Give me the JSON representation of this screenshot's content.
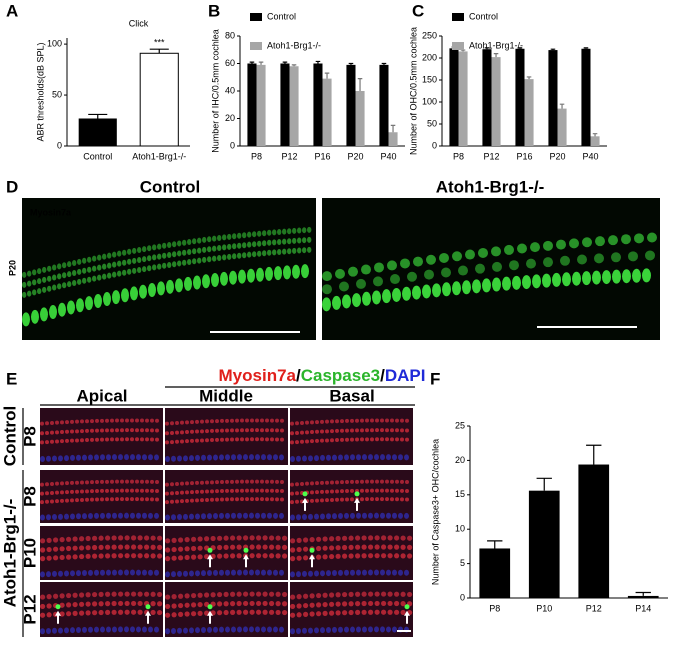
{
  "chart_data": [
    {
      "label": "A",
      "type": "bar",
      "title": "Click",
      "ylabel": "ABR thresholds(dB SPL)",
      "categories": [
        "Control",
        "Atoh1-Brg1-/-"
      ],
      "values": [
        27,
        91
      ],
      "errors": [
        4,
        4
      ],
      "colors": [
        "#000000",
        "#ffffff"
      ],
      "annotation": "***",
      "ylim": [
        0,
        106
      ],
      "yticks": [
        0,
        50,
        100
      ]
    },
    {
      "label": "B",
      "type": "bar",
      "ylabel": "Number of IHC/0.5mm cochlea",
      "categories": [
        "P8",
        "P12",
        "P16",
        "P20",
        "P40"
      ],
      "series": [
        {
          "name": "Control",
          "color": "#000000",
          "values": [
            60,
            60,
            60,
            59,
            59
          ],
          "errors": [
            1,
            1,
            1.5,
            1,
            1
          ]
        },
        {
          "name": "Atoh1-Brg1-/-",
          "color": "#a6a6a6",
          "values": [
            59,
            58,
            49,
            40,
            10
          ],
          "errors": [
            2,
            1,
            4,
            9,
            5
          ]
        }
      ],
      "ylim": [
        0,
        80
      ],
      "yticks": [
        0,
        20,
        40,
        60,
        80
      ]
    },
    {
      "label": "C",
      "type": "bar",
      "ylabel": "Number of OHC/0.5mm cochlea",
      "categories": [
        "P8",
        "P12",
        "P16",
        "P20",
        "P40"
      ],
      "series": [
        {
          "name": "Control",
          "color": "#000000",
          "values": [
            222,
            220,
            221,
            218,
            221
          ],
          "errors": [
            3,
            3,
            2,
            2,
            2
          ]
        },
        {
          "name": "Atoh1-Brg1-/-",
          "color": "#a6a6a6",
          "values": [
            215,
            202,
            152,
            85,
            22
          ],
          "errors": [
            3,
            8,
            5,
            10,
            6
          ]
        }
      ],
      "ylim": [
        0,
        250
      ],
      "yticks": [
        0,
        50,
        100,
        150,
        200,
        250
      ]
    },
    {
      "label": "F",
      "type": "bar",
      "ylabel": "Number of Caspase3+ OHC/cochlea",
      "categories": [
        "P8",
        "P10",
        "P12",
        "P14"
      ],
      "values": [
        7.2,
        15.6,
        19.4,
        0.3
      ],
      "errors": [
        1.1,
        1.8,
        2.8,
        0.5
      ],
      "color": "#000000",
      "ylim": [
        0,
        25
      ],
      "yticks": [
        0,
        5,
        10,
        15,
        20,
        25
      ]
    }
  ],
  "panel_d": {
    "label": "D",
    "columns": [
      "Control",
      "Atoh1-Brg1-/-"
    ],
    "stain": "Myosin7a",
    "row": "P20"
  },
  "panel_e": {
    "label": "E",
    "stains": [
      "Myosin7a",
      "/",
      "Caspase3",
      "/",
      "DAPI"
    ],
    "columns": [
      "Apical",
      "Middle",
      "Basal"
    ],
    "groups": [
      "Control",
      "Atoh1-Brg1-/-"
    ],
    "rows": [
      "P8",
      "P8",
      "P10",
      "P12"
    ]
  }
}
